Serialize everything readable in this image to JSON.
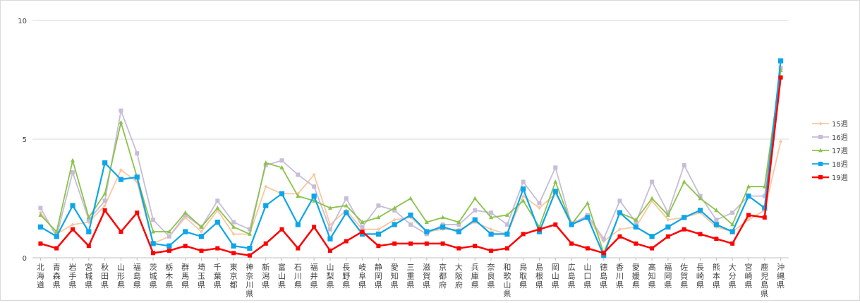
{
  "chart_data": {
    "type": "line",
    "title": "",
    "xlabel": "",
    "ylabel": "",
    "ylim": [
      0,
      10
    ],
    "yticks": [
      0,
      5,
      10
    ],
    "grid": "horizontal",
    "legend_position": "right",
    "categories": [
      "北海道",
      "青森県",
      "岩手県",
      "宮城県",
      "秋田県",
      "山形県",
      "福島県",
      "茨城県",
      "栃木県",
      "群馬県",
      "埼玉県",
      "千葉県",
      "東京都",
      "神奈川県",
      "新潟県",
      "富山県",
      "石川県",
      "福井県",
      "山梨県",
      "長野県",
      "岐阜県",
      "静岡県",
      "愛知県",
      "三重県",
      "滋賀県",
      "京都府",
      "大阪府",
      "兵庫県",
      "奈良県",
      "和歌山県",
      "鳥取県",
      "島根県",
      "岡山県",
      "広島県",
      "山口県",
      "徳島県",
      "香川県",
      "愛媛県",
      "高知県",
      "福岡県",
      "佐賀県",
      "長崎県",
      "熊本県",
      "大分県",
      "宮崎県",
      "鹿児島県",
      "沖縄県"
    ],
    "series": [
      {
        "name": "15週",
        "color": "#f8c8a0",
        "marker": "diamond",
        "values": [
          1.9,
          1.0,
          1.4,
          1.5,
          2.2,
          3.7,
          3.2,
          0.6,
          0.9,
          1.7,
          1.1,
          2.0,
          1.0,
          1.0,
          3.0,
          2.7,
          2.7,
          3.5,
          1.4,
          2.0,
          1.2,
          1.2,
          1.6,
          1.7,
          1.1,
          1.2,
          1.2,
          1.5,
          1.2,
          1.0,
          2.6,
          2.1,
          2.7,
          1.5,
          1.7,
          0.7,
          1.2,
          1.3,
          2.4,
          1.6,
          1.7,
          1.9,
          1.3,
          1.1,
          1.6,
          2.0,
          4.9
        ]
      },
      {
        "name": "16週",
        "color": "#c8bcd8",
        "marker": "square",
        "values": [
          2.1,
          0.9,
          3.6,
          1.6,
          2.4,
          6.2,
          4.4,
          1.6,
          0.9,
          1.8,
          1.3,
          2.4,
          1.5,
          1.2,
          3.9,
          4.1,
          3.5,
          3.0,
          1.2,
          2.5,
          1.3,
          2.2,
          2.0,
          1.4,
          1.0,
          1.4,
          1.4,
          2.0,
          1.9,
          1.4,
          3.2,
          2.3,
          3.8,
          1.4,
          1.8,
          0.8,
          2.4,
          1.5,
          3.2,
          1.9,
          3.9,
          2.6,
          1.6,
          1.9,
          2.6,
          2.6,
          8.0
        ]
      },
      {
        "name": "17週",
        "color": "#8bc34a",
        "marker": "triangle",
        "values": [
          1.8,
          1.1,
          4.1,
          1.7,
          2.7,
          5.7,
          3.4,
          1.1,
          1.1,
          1.9,
          1.3,
          2.1,
          1.3,
          1.0,
          4.0,
          3.8,
          2.6,
          2.4,
          2.1,
          2.2,
          1.5,
          1.7,
          2.1,
          2.5,
          1.5,
          1.7,
          1.5,
          2.5,
          1.7,
          1.8,
          2.4,
          1.3,
          3.2,
          1.4,
          2.3,
          0.2,
          1.9,
          1.6,
          2.5,
          1.8,
          3.2,
          2.5,
          2.0,
          1.4,
          3.0,
          3.0,
          7.9
        ]
      },
      {
        "name": "18週",
        "color": "#0ea5e9",
        "marker": "square",
        "values": [
          1.3,
          0.9,
          2.2,
          1.1,
          4.0,
          3.3,
          3.4,
          0.6,
          0.5,
          1.1,
          0.9,
          1.5,
          0.5,
          0.4,
          2.2,
          2.7,
          1.4,
          2.6,
          0.8,
          1.9,
          1.0,
          1.0,
          1.4,
          1.8,
          1.1,
          1.3,
          1.1,
          1.6,
          1.0,
          1.0,
          2.9,
          1.1,
          2.8,
          1.4,
          1.7,
          0.1,
          1.9,
          1.3,
          0.9,
          1.3,
          1.7,
          2.0,
          1.4,
          1.1,
          2.6,
          2.1,
          8.3
        ]
      },
      {
        "name": "19週",
        "color": "#ff0000",
        "marker": "square",
        "values": [
          0.6,
          0.4,
          1.2,
          0.5,
          2.0,
          1.1,
          1.9,
          0.2,
          0.3,
          0.5,
          0.3,
          0.4,
          0.2,
          0.1,
          0.6,
          1.2,
          0.4,
          1.3,
          0.3,
          0.7,
          1.1,
          0.5,
          0.6,
          0.6,
          0.6,
          0.6,
          0.4,
          0.5,
          0.3,
          0.4,
          1.0,
          1.2,
          1.4,
          0.6,
          0.4,
          0.2,
          0.9,
          0.6,
          0.4,
          0.9,
          1.2,
          1.0,
          0.8,
          0.6,
          1.8,
          1.7,
          7.6
        ]
      }
    ]
  }
}
